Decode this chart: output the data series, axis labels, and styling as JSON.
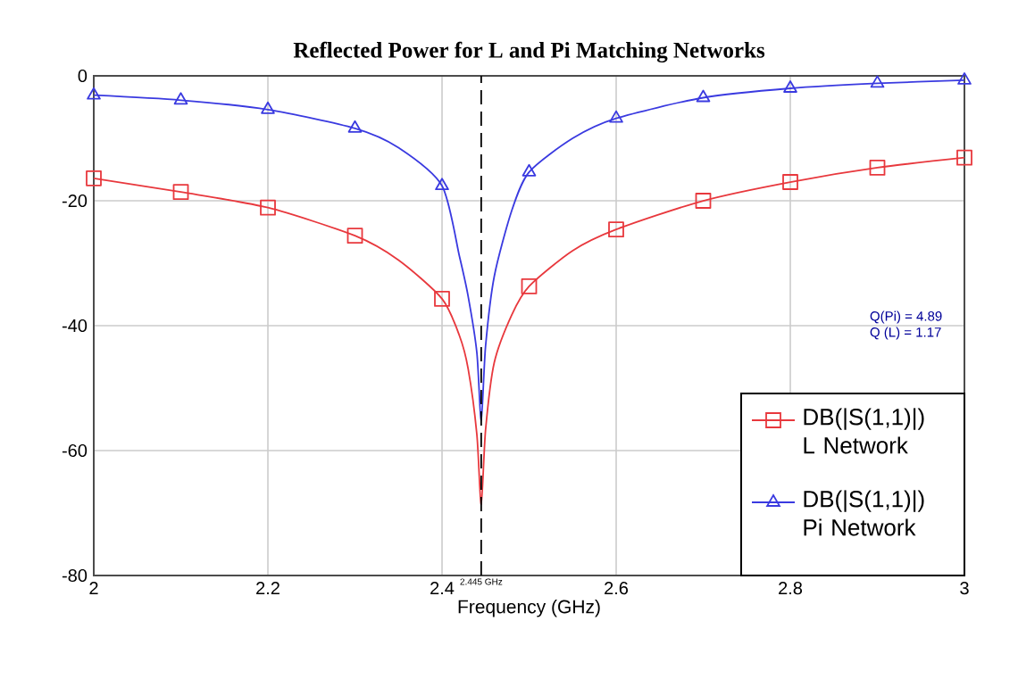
{
  "chart_data": {
    "type": "line",
    "title": "Reflected Power for L and Pi Matching Networks",
    "xlabel": "Frequency (GHz)",
    "xlim": [
      2,
      3
    ],
    "xticks": [
      2,
      2.2,
      2.4,
      2.6,
      2.8,
      3
    ],
    "ylim": [
      -80,
      0
    ],
    "yticks": [
      -80,
      -60,
      -40,
      -20,
      0
    ],
    "grid": true,
    "legend": "bottom right",
    "series": [
      {
        "name": "DB(|S(1,1)|) L Network",
        "color": "#e8383d",
        "marker": "square",
        "x": [
          2,
          2.1,
          2.2,
          2.3,
          2.35,
          2.4,
          2.42,
          2.43,
          2.44,
          2.445,
          2.45,
          2.46,
          2.48,
          2.5,
          2.55,
          2.6,
          2.7,
          2.8,
          2.9,
          3
        ],
        "values": [
          -16.4,
          -18.6,
          -21.1,
          -25.6,
          -29.5,
          -35.7,
          -41.6,
          -46.9,
          -57.4,
          -68.6,
          -56.7,
          -45.9,
          -38.3,
          -33.7,
          -28,
          -24.6,
          -20,
          -17,
          -14.7,
          -13.1
        ]
      },
      {
        "name": "DB(|S(1,1)|) Pi Network",
        "color": "#3a3ae0",
        "marker": "triangle",
        "x": [
          2,
          2.1,
          2.2,
          2.3,
          2.35,
          2.4,
          2.42,
          2.43,
          2.44,
          2.445,
          2.45,
          2.46,
          2.48,
          2.5,
          2.55,
          2.6,
          2.7,
          2.8,
          2.9,
          3
        ],
        "values": [
          -3.1,
          -3.9,
          -5.4,
          -8.4,
          -11.5,
          -17.6,
          -28.9,
          -35.3,
          -44.3,
          -55.1,
          -43.3,
          -32.1,
          -21.6,
          -15.4,
          -10,
          -6.8,
          -3.5,
          -2,
          -1.2,
          -0.7
        ]
      }
    ],
    "ref_lines": [
      {
        "axis": "x",
        "value": 2.445,
        "label": "2.445 GHz",
        "color": "#000000",
        "line_style": "dashed"
      }
    ],
    "annotations": [
      "Q(Pi) = 4.89",
      "Q (L) = 1.17"
    ]
  }
}
